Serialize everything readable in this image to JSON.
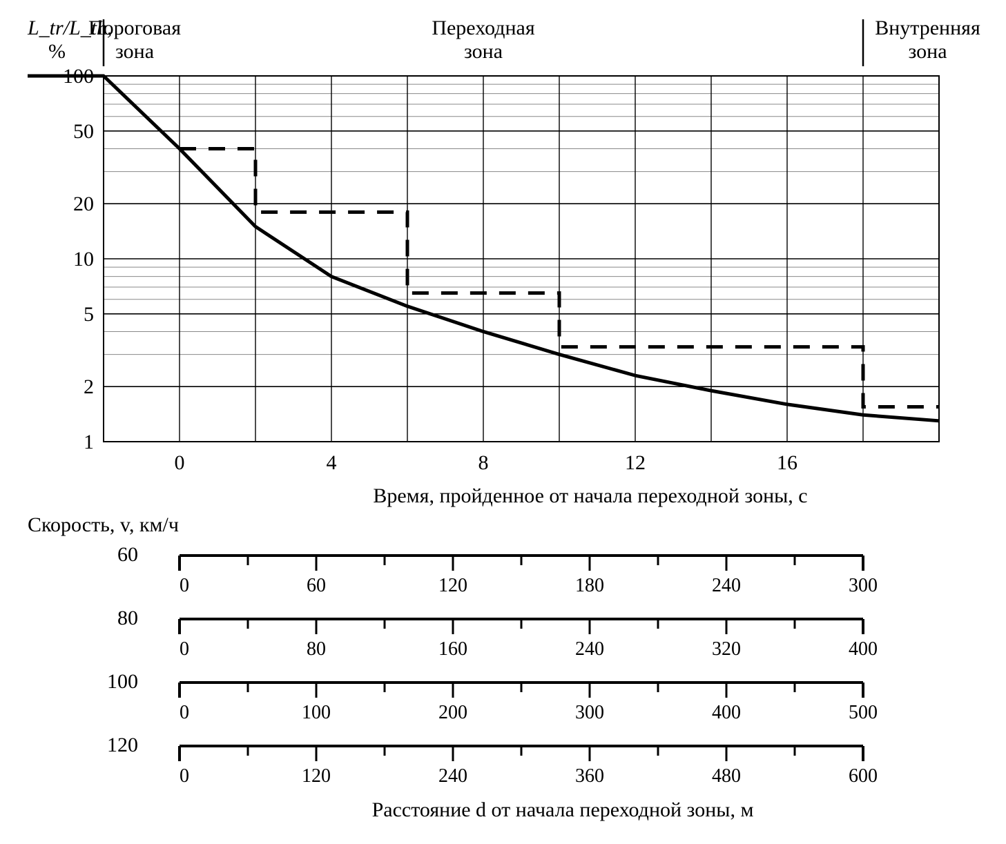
{
  "chart": {
    "type": "line-log",
    "background_color": "#ffffff",
    "grid_color": "#000000",
    "grid_minor_color": "#888888",
    "line_color": "#000000",
    "line_width": 5,
    "dash_line_color": "#000000",
    "dash_line_width": 5,
    "y_axis_label_line1": "L_tr/L_th,",
    "y_axis_label_line2": "%",
    "y_scale": "log",
    "y_min": 1,
    "y_max": 100,
    "y_ticks": [
      1,
      2,
      5,
      10,
      20,
      50,
      100
    ],
    "x_min": -2,
    "x_max": 20,
    "x_major_step": 2,
    "x_tick_labels": [
      0,
      4,
      8,
      12,
      16
    ],
    "x_axis_label": "Время, пройденное от начала переходной зоны, с",
    "zones": [
      {
        "label_line1": "Пороговая",
        "label_line2": "зона",
        "x_from": -4,
        "x_to": -2
      },
      {
        "label_line1": "Переходная",
        "label_line2": "зона",
        "x_from": -2,
        "x_to": 18
      },
      {
        "label_line1": "Внутренняя",
        "label_line2": "зона",
        "x_from": 18,
        "x_to": 22
      }
    ],
    "solid_curve": [
      {
        "x": -4,
        "y": 100
      },
      {
        "x": -2,
        "y": 100
      },
      {
        "x": 0,
        "y": 40
      },
      {
        "x": 2,
        "y": 15
      },
      {
        "x": 4,
        "y": 8
      },
      {
        "x": 6,
        "y": 5.5
      },
      {
        "x": 8,
        "y": 4
      },
      {
        "x": 10,
        "y": 3
      },
      {
        "x": 12,
        "y": 2.3
      },
      {
        "x": 14,
        "y": 1.9
      },
      {
        "x": 16,
        "y": 1.6
      },
      {
        "x": 18,
        "y": 1.4
      },
      {
        "x": 20,
        "y": 1.3
      }
    ],
    "dash_steps": [
      {
        "x_from": 0,
        "x_to": 2,
        "y": 40
      },
      {
        "x_from": 2,
        "x_to": 6,
        "y": 18
      },
      {
        "x_from": 6,
        "x_to": 10,
        "y": 6.5
      },
      {
        "x_from": 10,
        "x_to": 18,
        "y": 3.3
      },
      {
        "x_from": 18,
        "x_to": 20,
        "y": 1.55
      }
    ]
  },
  "speed_block": {
    "title": "Скорость, v, км/ч",
    "footer": "Расстояние d от начала переходной зоны, м",
    "ruler_color": "#000000",
    "tick_font_size": 28,
    "rows": [
      {
        "speed": 60,
        "max": 300,
        "labels": [
          0,
          60,
          120,
          180,
          240,
          300
        ]
      },
      {
        "speed": 80,
        "max": 400,
        "labels": [
          0,
          80,
          160,
          240,
          320,
          400
        ]
      },
      {
        "speed": 100,
        "max": 500,
        "labels": [
          0,
          100,
          200,
          300,
          400,
          500
        ]
      },
      {
        "speed": 120,
        "max": 600,
        "labels": [
          0,
          120,
          240,
          360,
          480,
          600
        ]
      }
    ]
  },
  "fonts": {
    "family": "Times New Roman, serif",
    "label_size": 30,
    "tick_size": 30
  }
}
